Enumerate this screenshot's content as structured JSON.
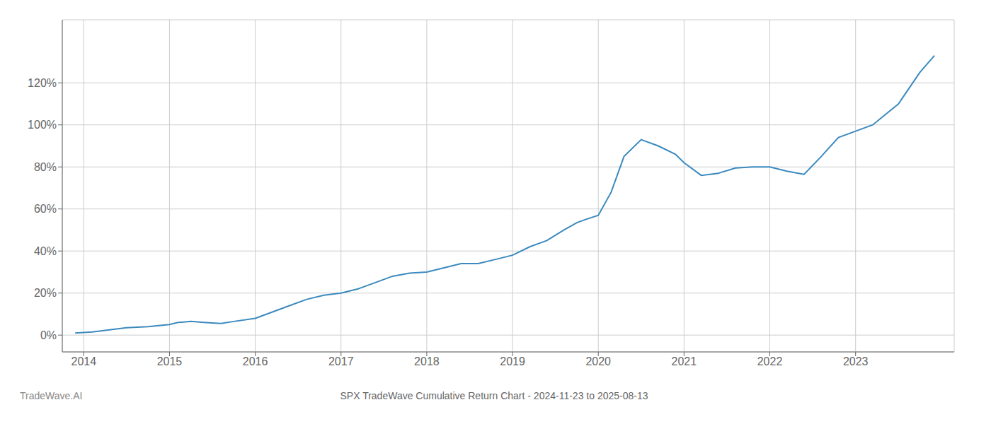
{
  "chart_data": {
    "type": "line",
    "title": "SPX TradeWave Cumulative Return Chart - 2024-11-23 to 2025-08-13",
    "annotations": [
      "TradeWave.AI"
    ],
    "x": [
      2013.9,
      2014.1,
      2014.3,
      2014.5,
      2014.75,
      2015.0,
      2015.1,
      2015.25,
      2015.4,
      2015.6,
      2015.75,
      2016.0,
      2016.2,
      2016.4,
      2016.6,
      2016.8,
      2017.0,
      2017.2,
      2017.4,
      2017.6,
      2017.8,
      2018.0,
      2018.2,
      2018.4,
      2018.6,
      2018.8,
      2019.0,
      2019.2,
      2019.4,
      2019.6,
      2019.75,
      2019.85,
      2020.0,
      2020.15,
      2020.3,
      2020.5,
      2020.7,
      2020.9,
      2021.0,
      2021.2,
      2021.4,
      2021.6,
      2021.8,
      2022.0,
      2022.2,
      2022.4,
      2022.6,
      2022.8,
      2023.0,
      2023.2,
      2023.5,
      2023.75,
      2023.92
    ],
    "values": [
      1.0,
      1.5,
      2.5,
      3.5,
      4.0,
      5.0,
      6.0,
      6.5,
      6.0,
      5.5,
      6.5,
      8.0,
      11.0,
      14.0,
      17.0,
      19.0,
      20.0,
      22.0,
      25.0,
      28.0,
      29.5,
      30.0,
      32.0,
      34.0,
      34.0,
      36.0,
      38.0,
      42.0,
      45.0,
      50.0,
      53.5,
      55.0,
      57.0,
      68.0,
      85.0,
      93.0,
      90.0,
      86.0,
      82.0,
      76.0,
      77.0,
      79.5,
      80.0,
      80.0,
      78.0,
      76.5,
      85.0,
      94.0,
      97.0,
      100.0,
      110.0,
      125.0,
      133.0
    ],
    "color": "#3a8abf",
    "xlim": [
      2013.75,
      2024.15
    ],
    "xticks": [
      2014,
      2015,
      2016,
      2017,
      2018,
      2019,
      2020,
      2021,
      2022,
      2023
    ],
    "ylim": [
      -8,
      150
    ],
    "yticks": [
      {
        "value": 0,
        "label": "0%"
      },
      {
        "value": 20,
        "label": "20%"
      },
      {
        "value": 40,
        "label": "40%"
      },
      {
        "value": 60,
        "label": "60%"
      },
      {
        "value": 80,
        "label": "80%"
      },
      {
        "value": 100,
        "label": "100%"
      },
      {
        "value": 120,
        "label": "120%"
      }
    ],
    "grid": true
  }
}
